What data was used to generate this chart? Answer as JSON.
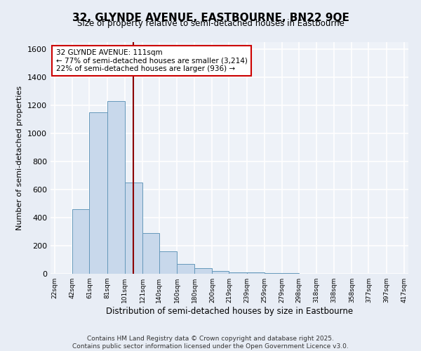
{
  "title": "32, GLYNDE AVENUE, EASTBOURNE, BN22 9QE",
  "subtitle": "Size of property relative to semi-detached houses in Eastbourne",
  "xlabel": "Distribution of semi-detached houses by size in Eastbourne",
  "ylabel": "Number of semi-detached properties",
  "property_size": 111,
  "pct_smaller": 77,
  "pct_larger": 22,
  "count_smaller": 3214,
  "count_larger": 936,
  "footer_line1": "Contains HM Land Registry data © Crown copyright and database right 2025.",
  "footer_line2": "Contains public sector information licensed under the Open Government Licence v3.0.",
  "bar_color": "#c8d8eb",
  "bar_edge_color": "#6699bb",
  "vline_color": "#8b0000",
  "background_color": "#e8edf5",
  "plot_bg_color": "#eef2f8",
  "grid_color": "#ffffff",
  "annotation_bg": "#ffffff",
  "annotation_edge": "#cc0000",
  "ylim": [
    0,
    1650
  ],
  "xlim": [
    17,
    422
  ],
  "bin_edges": [
    22,
    42,
    61,
    81,
    101,
    121,
    140,
    160,
    180,
    200,
    219,
    239,
    259,
    279,
    298,
    318,
    338,
    358,
    377,
    397,
    417
  ],
  "bin_counts": [
    0,
    462,
    1150,
    1232,
    652,
    288,
    158,
    72,
    38,
    22,
    12,
    8,
    5,
    4,
    2,
    2,
    1,
    1,
    0,
    0
  ],
  "tick_labels": [
    "22sqm",
    "42sqm",
    "61sqm",
    "81sqm",
    "101sqm",
    "121sqm",
    "140sqm",
    "160sqm",
    "180sqm",
    "200sqm",
    "219sqm",
    "239sqm",
    "259sqm",
    "279sqm",
    "298sqm",
    "318sqm",
    "338sqm",
    "358sqm",
    "377sqm",
    "397sqm",
    "417sqm"
  ],
  "yticks": [
    0,
    200,
    400,
    600,
    800,
    1000,
    1200,
    1400,
    1600
  ]
}
